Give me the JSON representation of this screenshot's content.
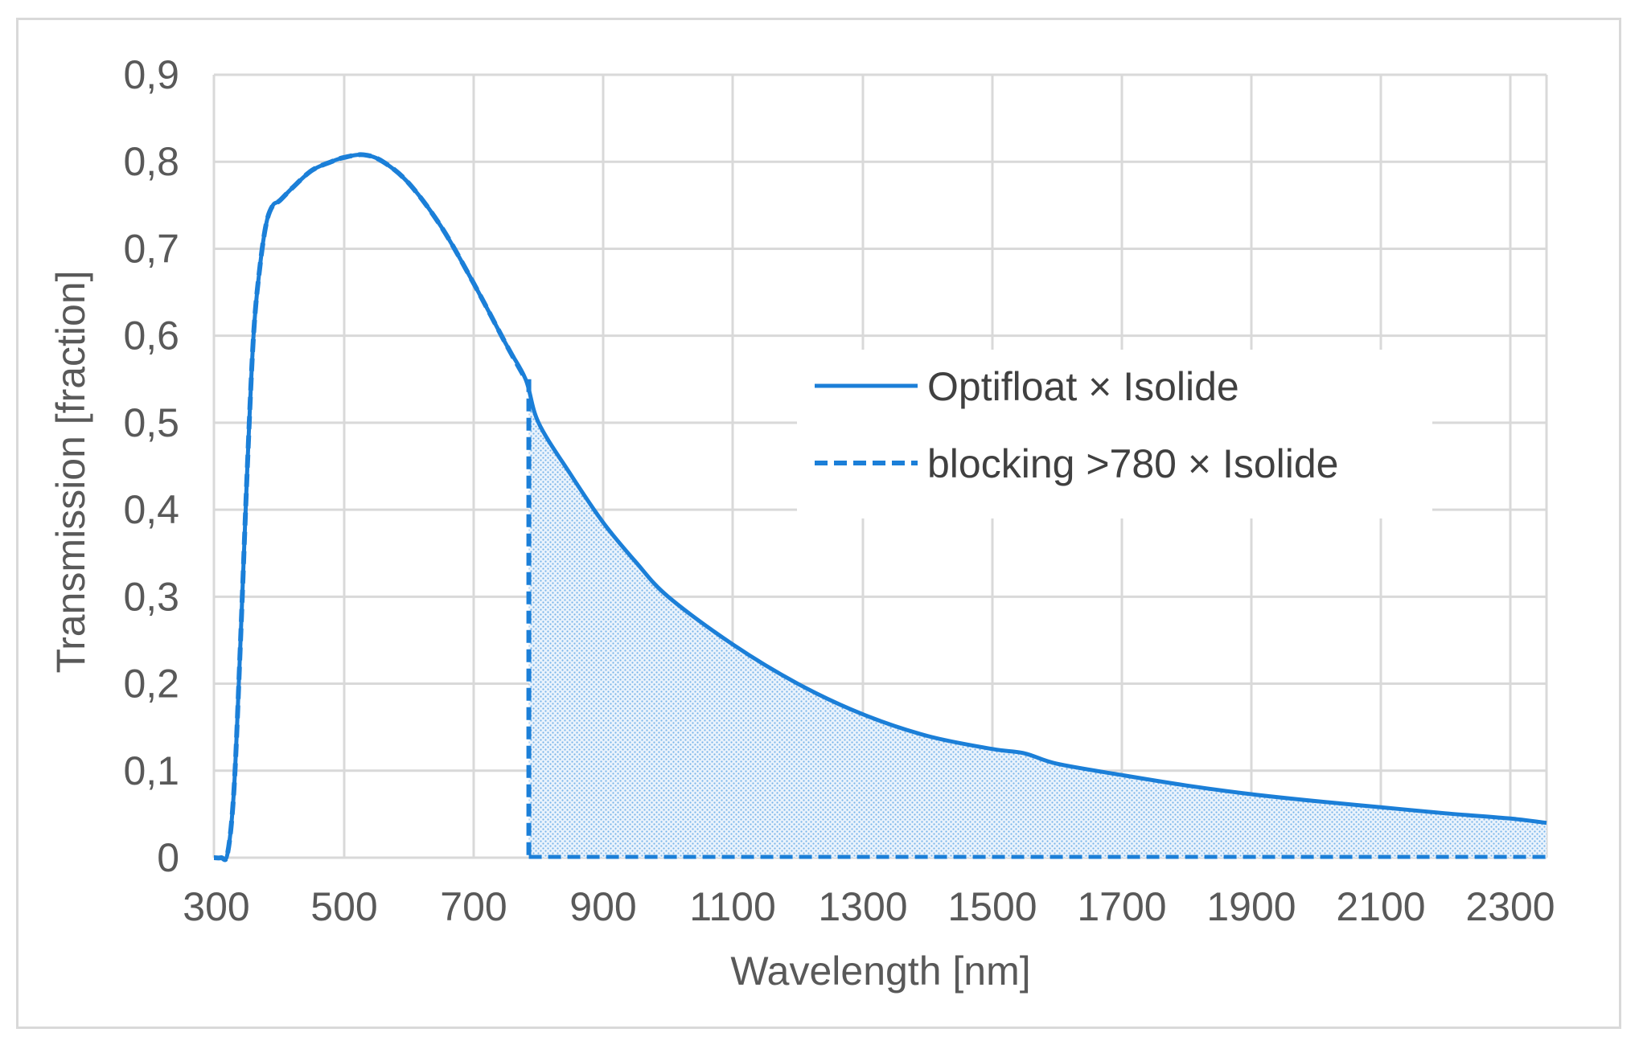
{
  "chart_data": {
    "type": "line",
    "title": "",
    "xlabel": "Wavelength [nm]",
    "ylabel": "Transmission [fraction]",
    "xlim": [
      300,
      2400
    ],
    "ylim": [
      0,
      0.9
    ],
    "x_ticks": [
      300,
      500,
      700,
      900,
      1100,
      1300,
      1500,
      1700,
      1900,
      2100,
      2300
    ],
    "x_tick_labels": [
      "300",
      "500",
      "700",
      "900",
      "1100",
      "1300",
      "1500",
      "1700",
      "1900",
      "2100",
      "2300"
    ],
    "y_ticks": [
      0,
      0.1,
      0.2,
      0.3,
      0.4,
      0.5,
      0.6,
      0.7,
      0.8,
      0.9
    ],
    "y_tick_labels": [
      "0",
      "0,1",
      "0,2",
      "0,3",
      "0,4",
      "0,5",
      "0,6",
      "0,7",
      "0,8",
      "0,9"
    ],
    "grid": true,
    "legend_position": "right-center",
    "colors": {
      "line": "#1b7fd8",
      "grid": "#d9d9d9",
      "fill": "#1b7fd8"
    },
    "series": [
      {
        "name": "Optifloat × Isolide",
        "style": "solid",
        "x": [
          300,
          310,
          320,
          330,
          340,
          350,
          360,
          370,
          380,
          390,
          400,
          420,
          450,
          480,
          500,
          530,
          560,
          600,
          650,
          700,
          750,
          780,
          800,
          850,
          900,
          950,
          1000,
          1100,
          1200,
          1300,
          1400,
          1500,
          1550,
          1600,
          1700,
          1800,
          1900,
          2000,
          2100,
          2200,
          2300,
          2400
        ],
        "values": [
          0,
          0,
          0.005,
          0.08,
          0.25,
          0.44,
          0.6,
          0.68,
          0.73,
          0.75,
          0.755,
          0.77,
          0.79,
          0.8,
          0.805,
          0.808,
          0.8,
          0.775,
          0.725,
          0.66,
          0.59,
          0.55,
          0.5,
          0.44,
          0.385,
          0.34,
          0.3,
          0.245,
          0.2,
          0.165,
          0.14,
          0.125,
          0.12,
          0.108,
          0.095,
          0.083,
          0.073,
          0.065,
          0.058,
          0.051,
          0.045,
          0.04
        ]
      },
      {
        "name": "blocking >780 × Isolide",
        "style": "dashed",
        "x": [
          300,
          310,
          320,
          330,
          340,
          350,
          360,
          370,
          380,
          390,
          400,
          420,
          450,
          480,
          500,
          530,
          560,
          600,
          650,
          700,
          750,
          780,
          785,
          800,
          2400
        ],
        "values": [
          0,
          0,
          0.005,
          0.08,
          0.25,
          0.44,
          0.6,
          0.68,
          0.73,
          0.75,
          0.755,
          0.77,
          0.79,
          0.8,
          0.805,
          0.808,
          0.8,
          0.775,
          0.725,
          0.66,
          0.59,
          0.55,
          0,
          0,
          0
        ]
      }
    ],
    "shaded_region": {
      "from_x": 785,
      "to_x": 2400,
      "description": "blocked"
    }
  }
}
